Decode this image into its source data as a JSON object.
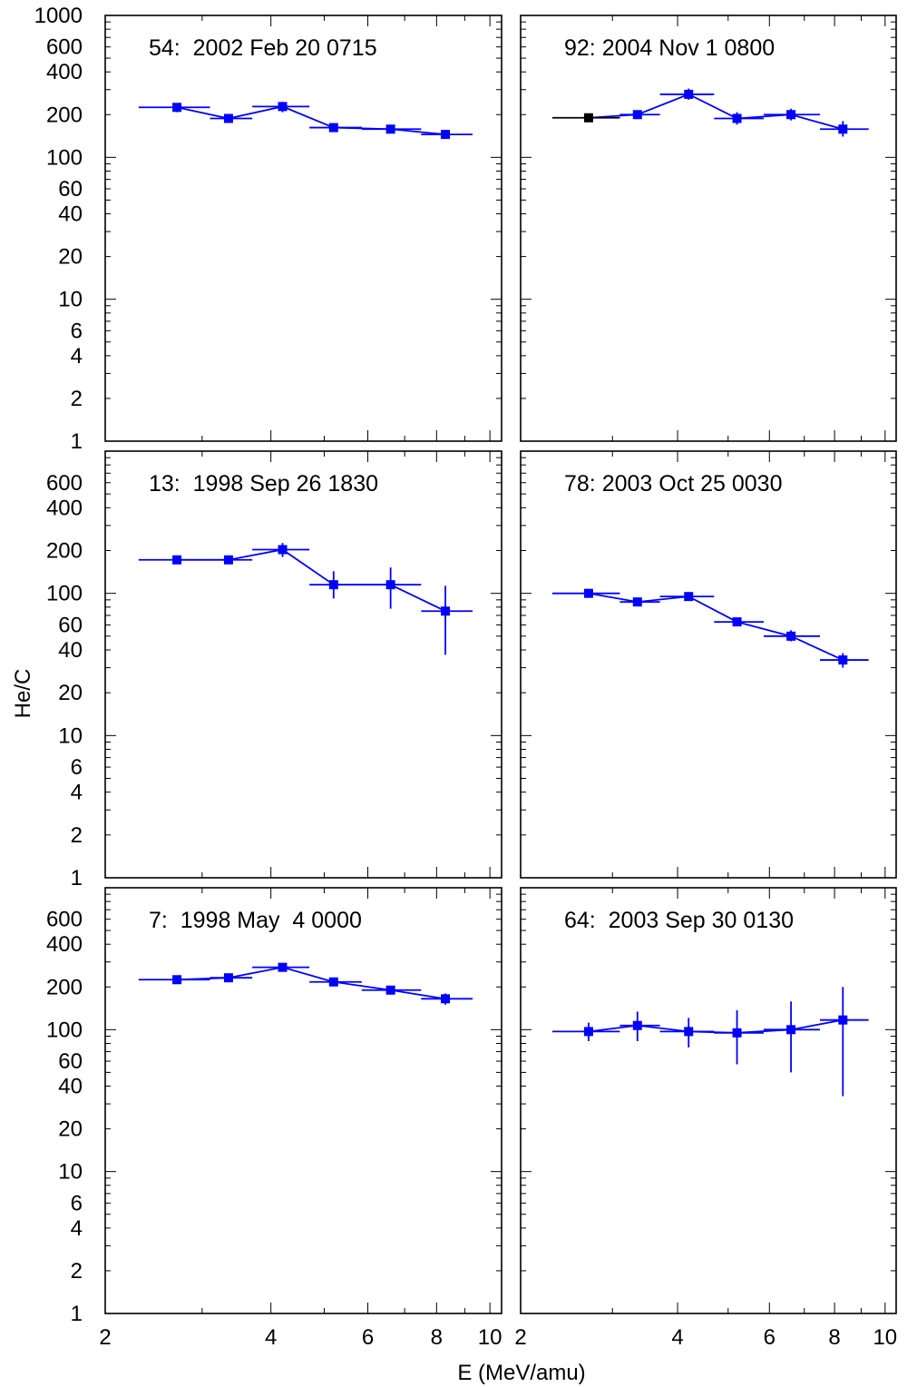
{
  "chart_data": {
    "type": "line",
    "layout": "3x2 grid of panels sharing axes",
    "xlabel": "E (MeV/amu)",
    "ylabel": "He/C",
    "xscale": "log",
    "yscale": "log",
    "xlim": [
      2,
      10.5
    ],
    "ylim": [
      1,
      1000
    ],
    "x_ticks": [
      2,
      4,
      6,
      8,
      10
    ],
    "x_tick_labels": [
      "2",
      "4",
      "6",
      "8",
      "10"
    ],
    "y_ticks_top_row": [
      1000,
      600,
      400,
      200,
      100,
      60,
      40,
      20,
      10,
      6,
      4,
      2,
      1
    ],
    "y_tick_labels_top_row": [
      "1000",
      "600",
      "400",
      "200",
      "100",
      "60",
      "40",
      "20",
      "10",
      "6",
      "4",
      "2",
      "1"
    ],
    "y_ticks_other_rows": [
      600,
      400,
      200,
      100,
      60,
      40,
      20,
      10,
      6,
      4,
      2,
      1
    ],
    "y_tick_labels_other_rows": [
      "600",
      "400",
      "200",
      "100",
      "60",
      "40",
      "20",
      "10",
      "6",
      "4",
      "2",
      "1"
    ],
    "grid": false,
    "series_color": "#0000ff",
    "first_point_color_panel_92": "#000000",
    "energy_bins": [
      {
        "center": 2.7,
        "low": 2.3,
        "high": 3.1
      },
      {
        "center": 3.35,
        "low": 3.1,
        "high": 3.7
      },
      {
        "center": 4.2,
        "low": 3.7,
        "high": 4.7
      },
      {
        "center": 5.2,
        "low": 4.7,
        "high": 5.85
      },
      {
        "center": 6.6,
        "low": 5.85,
        "high": 7.5
      },
      {
        "center": 8.3,
        "low": 7.5,
        "high": 9.3
      }
    ],
    "panels": [
      {
        "title": "54:  2002 Feb 20 0715",
        "values": [
          225,
          188,
          228,
          162,
          158,
          145
        ],
        "err_low": [
          208,
          178,
          208,
          153,
          150,
          136
        ],
        "err_high": [
          240,
          199,
          246,
          172,
          167,
          154
        ]
      },
      {
        "title": "92: 2004 Nov 1 0800",
        "values": [
          190,
          200,
          278,
          188,
          200,
          158
        ],
        "err_low": [
          182,
          190,
          255,
          170,
          182,
          140
        ],
        "err_high": [
          198,
          212,
          305,
          208,
          220,
          180
        ]
      },
      {
        "title": "13:  1998 Sep 26 1830",
        "values": [
          172,
          172,
          203,
          115,
          115,
          75
        ],
        "err_low": [
          164,
          162,
          180,
          92,
          78,
          37
        ],
        "err_high": [
          180,
          182,
          226,
          143,
          152,
          113
        ]
      },
      {
        "title": "78: 2003 Oct 25 0030",
        "values": [
          100,
          87,
          95,
          63,
          50,
          34
        ],
        "err_low": [
          96,
          83,
          89,
          59,
          46,
          30
        ],
        "err_high": [
          104,
          91,
          101,
          67,
          55,
          38
        ]
      },
      {
        "title": "7:  1998 May  4 0000",
        "values": [
          225,
          232,
          275,
          217,
          190,
          165
        ],
        "err_low": [
          213,
          222,
          259,
          205,
          178,
          150
        ],
        "err_high": [
          237,
          243,
          292,
          230,
          203,
          180
        ]
      },
      {
        "title": "64:  2003 Sep 30 0130",
        "values": [
          97,
          107,
          97,
          95,
          100,
          117
        ],
        "err_low": [
          83,
          83,
          75,
          57,
          50,
          34
        ],
        "err_high": [
          112,
          134,
          121,
          137,
          158,
          200
        ]
      }
    ]
  }
}
